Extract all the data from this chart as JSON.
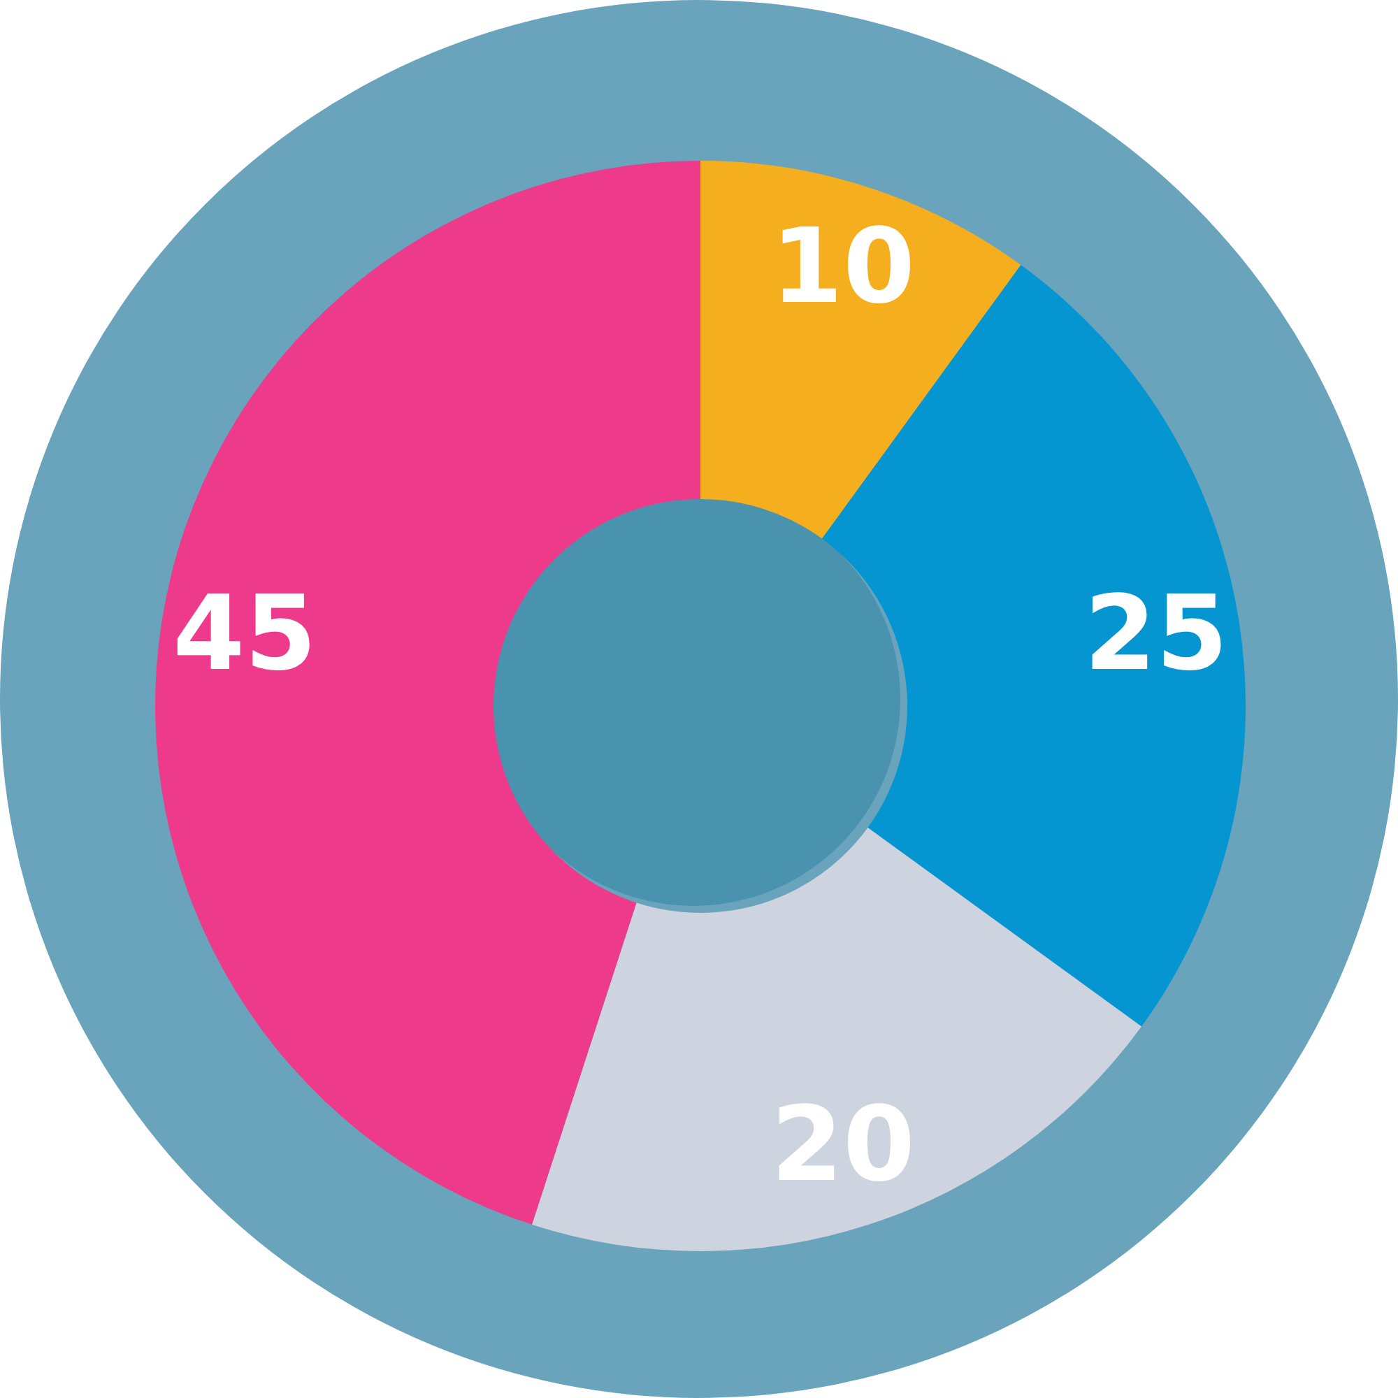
{
  "chart_data": {
    "type": "donut",
    "categories": [
      null,
      null,
      null,
      null
    ],
    "values": [
      10,
      25,
      20,
      45
    ],
    "colors": [
      "#f5ae1e",
      "#0596d2",
      "#cdd4e0",
      "#ee3a8a"
    ],
    "data_labels": true
  }
}
